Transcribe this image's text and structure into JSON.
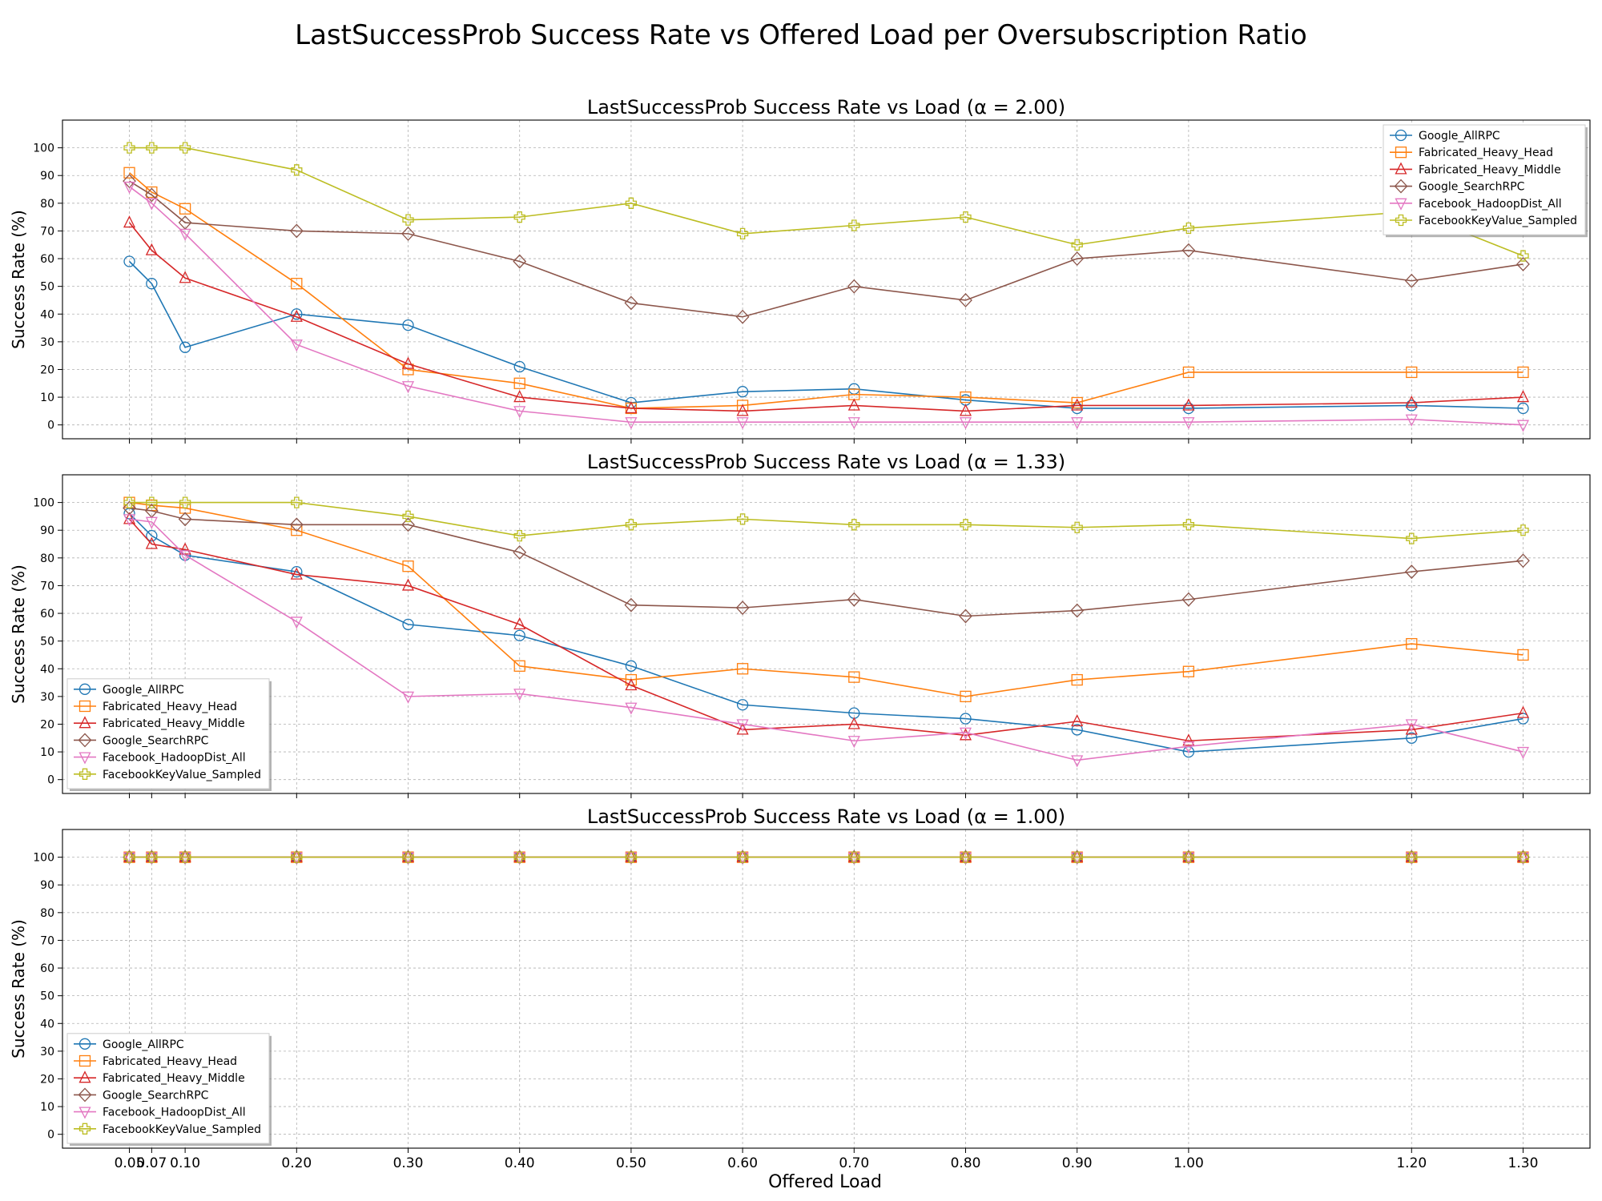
{
  "chart_data": {
    "type": "line",
    "suptitle": "LastSuccessProb Success Rate vs Offered Load per Oversubscription Ratio",
    "xlabel": "Offered Load",
    "ylabel": "Success Rate (%)",
    "x": [
      0.05,
      0.07,
      0.1,
      0.2,
      0.3,
      0.4,
      0.5,
      0.6,
      0.7,
      0.8,
      0.9,
      1.0,
      1.2,
      1.3
    ],
    "x_tick_labels": [
      "0.05",
      "0.07",
      "0.10",
      "0.20",
      "0.30",
      "0.40",
      "0.50",
      "0.60",
      "0.70",
      "0.80",
      "0.90",
      "1.00",
      "1.20",
      "1.30"
    ],
    "xlim": [
      -0.01,
      1.36
    ],
    "ylim": [
      -5,
      110
    ],
    "y_ticks": [
      0,
      10,
      20,
      30,
      40,
      50,
      60,
      70,
      80,
      90,
      100
    ],
    "grid": true,
    "series_styles": [
      {
        "name": "Google_AllRPC",
        "color": "#1f77b4",
        "marker": "circle"
      },
      {
        "name": "Fabricated_Heavy_Head",
        "color": "#ff7f0e",
        "marker": "square"
      },
      {
        "name": "Fabricated_Heavy_Middle",
        "color": "#d62728",
        "marker": "triangle-up"
      },
      {
        "name": "Google_SearchRPC",
        "color": "#8c564b",
        "marker": "diamond"
      },
      {
        "name": "Facebook_HadoopDist_All",
        "color": "#e377c2",
        "marker": "triangle-down"
      },
      {
        "name": "FacebookKeyValue_Sampled",
        "color": "#bcbd22",
        "marker": "plus"
      }
    ],
    "panels": [
      {
        "title": "LastSuccessProb Success Rate vs Load (α = 2.00)",
        "legend": "top-right",
        "series": [
          {
            "name": "Google_AllRPC",
            "values": [
              59,
              51,
              28,
              40,
              36,
              21,
              8,
              12,
              13,
              9,
              6,
              6,
              7,
              6
            ]
          },
          {
            "name": "Fabricated_Heavy_Head",
            "values": [
              91,
              84,
              78,
              51,
              20,
              15,
              6,
              7,
              11,
              10,
              8,
              19,
              19,
              19
            ]
          },
          {
            "name": "Fabricated_Heavy_Middle",
            "values": [
              73,
              63,
              53,
              39,
              22,
              10,
              6,
              5,
              7,
              5,
              7,
              7,
              8,
              10
            ]
          },
          {
            "name": "Google_SearchRPC",
            "values": [
              88,
              83,
              73,
              70,
              69,
              59,
              44,
              39,
              50,
              45,
              60,
              63,
              52,
              58
            ]
          },
          {
            "name": "Facebook_HadoopDist_All",
            "values": [
              86,
              80,
              69,
              29,
              14,
              5,
              1,
              1,
              1,
              1,
              1,
              1,
              2,
              0
            ]
          },
          {
            "name": "FacebookKeyValue_Sampled",
            "values": [
              100,
              100,
              100,
              92,
              74,
              75,
              80,
              69,
              72,
              75,
              65,
              71,
              77,
              61
            ]
          }
        ]
      },
      {
        "title": "LastSuccessProb Success Rate vs Load (α = 1.33)",
        "legend": "lower-left",
        "series": [
          {
            "name": "Google_AllRPC",
            "values": [
              96,
              88,
              81,
              75,
              56,
              52,
              41,
              27,
              24,
              22,
              18,
              10,
              15,
              22
            ]
          },
          {
            "name": "Fabricated_Heavy_Head",
            "values": [
              100,
              99,
              98,
              90,
              77,
              41,
              36,
              40,
              37,
              30,
              36,
              39,
              49,
              45
            ]
          },
          {
            "name": "Fabricated_Heavy_Middle",
            "values": [
              94,
              85,
              83,
              74,
              70,
              56,
              34,
              18,
              20,
              16,
              21,
              14,
              18,
              24
            ]
          },
          {
            "name": "Google_SearchRPC",
            "values": [
              98,
              97,
              94,
              92,
              92,
              82,
              63,
              62,
              65,
              59,
              61,
              65,
              75,
              79
            ]
          },
          {
            "name": "Facebook_HadoopDist_All",
            "values": [
              94,
              93,
              81,
              57,
              30,
              31,
              26,
              20,
              14,
              17,
              7,
              12,
              20,
              10
            ]
          },
          {
            "name": "FacebookKeyValue_Sampled",
            "values": [
              100,
              100,
              100,
              100,
              95,
              88,
              92,
              94,
              92,
              92,
              91,
              92,
              87,
              90
            ]
          }
        ]
      },
      {
        "title": "LastSuccessProb Success Rate vs Load (α = 1.00)",
        "legend": "lower-left",
        "series": [
          {
            "name": "Google_AllRPC",
            "values": [
              100,
              100,
              100,
              100,
              100,
              100,
              100,
              100,
              100,
              100,
              100,
              100,
              100,
              100
            ]
          },
          {
            "name": "Fabricated_Heavy_Head",
            "values": [
              100,
              100,
              100,
              100,
              100,
              100,
              100,
              100,
              100,
              100,
              100,
              100,
              100,
              100
            ]
          },
          {
            "name": "Fabricated_Heavy_Middle",
            "values": [
              100,
              100,
              100,
              100,
              100,
              100,
              100,
              100,
              100,
              100,
              100,
              100,
              100,
              100
            ]
          },
          {
            "name": "Google_SearchRPC",
            "values": [
              100,
              100,
              100,
              100,
              100,
              100,
              100,
              100,
              100,
              100,
              100,
              100,
              100,
              100
            ]
          },
          {
            "name": "Facebook_HadoopDist_All",
            "values": [
              100,
              100,
              100,
              100,
              100,
              100,
              100,
              100,
              100,
              100,
              100,
              100,
              100,
              100
            ]
          },
          {
            "name": "FacebookKeyValue_Sampled",
            "values": [
              100,
              100,
              100,
              100,
              100,
              100,
              100,
              100,
              100,
              100,
              100,
              100,
              100,
              100
            ]
          }
        ]
      }
    ]
  }
}
